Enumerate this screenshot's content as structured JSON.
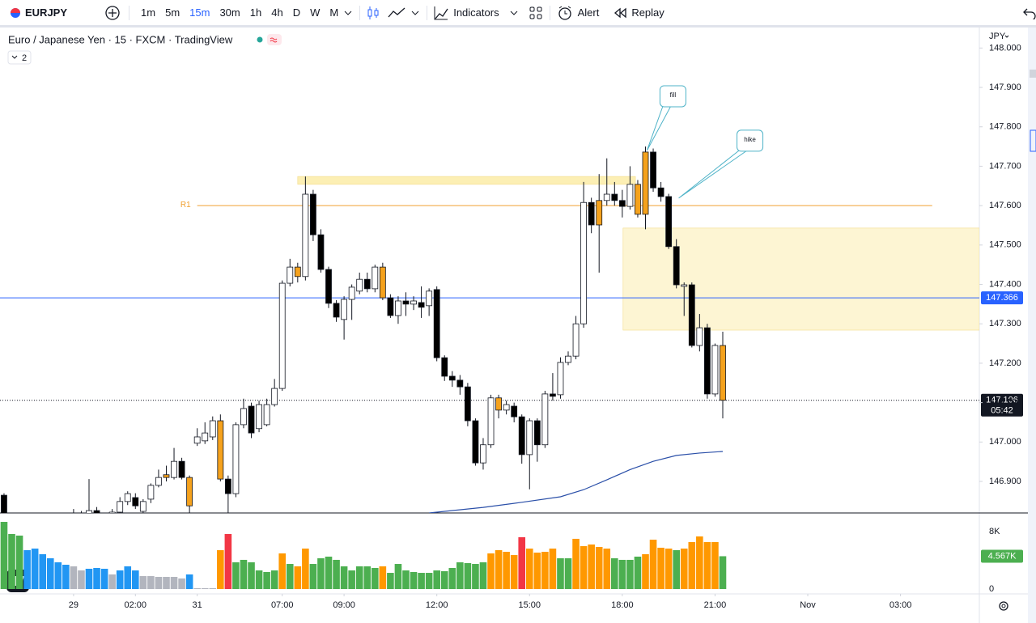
{
  "toolbar": {
    "symbol": "EURJPY",
    "intervals": [
      "1m",
      "5m",
      "15m",
      "30m",
      "1h",
      "4h",
      "D",
      "W",
      "M"
    ],
    "active_interval": "15m",
    "buttons": [
      "Indicators",
      "Alert",
      "Replay"
    ]
  },
  "legend": {
    "title": "Euro / Japanese Yen · 15 · FXCM · TradingView",
    "hidden_indicators": 2
  },
  "chart": {
    "type": "candlestick",
    "currency": "JPY",
    "xlim": [
      -0.52,
      126.2
    ],
    "ylim": [
      146.822,
      148.05
    ],
    "yticks": [
      {
        "value": 148,
        "label": "148.000"
      },
      {
        "value": 147.9,
        "label": "147.900"
      },
      {
        "value": 147.8,
        "label": "147.800"
      },
      {
        "value": 147.7,
        "label": "147.700"
      },
      {
        "value": 147.6,
        "label": "147.600"
      },
      {
        "value": 147.5,
        "label": "147.500"
      },
      {
        "value": 147.4,
        "label": "147.400"
      },
      {
        "value": 147.3,
        "label": "147.300"
      },
      {
        "value": 147.2,
        "label": "147.200"
      },
      {
        "value": 147.1,
        "label": "147.100"
      },
      {
        "value": 147,
        "label": "147.000"
      },
      {
        "value": 146.9,
        "label": "146.900"
      }
    ],
    "xticks": [
      {
        "value": 9,
        "label": "29"
      },
      {
        "value": 17,
        "label": "02:00"
      },
      {
        "value": 25,
        "label": "31"
      },
      {
        "value": 36,
        "label": "07:00"
      },
      {
        "value": 44,
        "label": "09:00"
      },
      {
        "value": 56,
        "label": "12:00"
      },
      {
        "value": 68,
        "label": "15:00"
      },
      {
        "value": 80,
        "label": "18:00"
      },
      {
        "value": 92,
        "label": "21:00"
      },
      {
        "value": 104,
        "label": "Nov"
      },
      {
        "value": 116,
        "label": "03:00"
      }
    ],
    "candles": [
      [
        146.865,
        146.87,
        146.8,
        146.81
      ],
      [
        146.79,
        146.805,
        146.77,
        146.78
      ],
      [
        146.78,
        146.8,
        146.76,
        146.795
      ],
      [
        146.795,
        146.81,
        146.78,
        146.785
      ],
      [
        146.785,
        146.8,
        146.77,
        146.79
      ],
      [
        146.79,
        146.812,
        146.78,
        146.8
      ],
      [
        146.8,
        146.815,
        146.785,
        146.79
      ],
      [
        146.79,
        146.805,
        146.775,
        146.8
      ],
      [
        146.8,
        146.818,
        146.79,
        146.81
      ],
      [
        146.81,
        146.83,
        146.795,
        146.805
      ],
      [
        146.805,
        146.825,
        146.79,
        146.815
      ],
      [
        146.815,
        146.906,
        146.8,
        146.826
      ],
      [
        146.826,
        146.835,
        146.8,
        146.81
      ],
      [
        146.81,
        146.82,
        146.79,
        146.815
      ],
      [
        146.815,
        146.83,
        146.8,
        146.822
      ],
      [
        146.822,
        146.86,
        146.815,
        146.849
      ],
      [
        146.849,
        146.875,
        146.84,
        146.869
      ],
      [
        146.859,
        146.87,
        146.83,
        146.838
      ],
      [
        146.824,
        146.855,
        146.815,
        146.849
      ],
      [
        146.855,
        146.895,
        146.845,
        146.89
      ],
      [
        146.89,
        146.93,
        146.885,
        146.91
      ],
      [
        146.917,
        146.94,
        146.9,
        146.91
      ],
      [
        146.91,
        146.985,
        146.905,
        146.951
      ],
      [
        146.951,
        146.96,
        146.905,
        146.91
      ],
      [
        146.91,
        146.915,
        146.815,
        146.838
      ],
      [
        146.997,
        147.035,
        146.99,
        147.013
      ],
      [
        147.003,
        147.05,
        146.995,
        147.023
      ],
      [
        147.013,
        147.065,
        147.005,
        147.054
      ],
      [
        147.054,
        147.07,
        146.9,
        146.906
      ],
      [
        146.906,
        146.915,
        146.82,
        146.869
      ],
      [
        146.869,
        147.05,
        146.86,
        147.044
      ],
      [
        147.044,
        147.11,
        147.035,
        147.085
      ],
      [
        147.091,
        147.1,
        147.01,
        147.023
      ],
      [
        147.034,
        147.105,
        147.025,
        147.095
      ],
      [
        147.044,
        147.11,
        147.04,
        147.095
      ],
      [
        147.095,
        147.16,
        147.09,
        147.136
      ],
      [
        147.136,
        147.41,
        147.13,
        147.403
      ],
      [
        147.403,
        147.465,
        147.395,
        147.444
      ],
      [
        147.444,
        147.455,
        147.405,
        147.42
      ],
      [
        147.42,
        147.674,
        147.41,
        147.629
      ],
      [
        147.629,
        147.64,
        147.51,
        147.526
      ],
      [
        147.526,
        147.54,
        147.43,
        147.438
      ],
      [
        147.438,
        147.445,
        147.34,
        147.352
      ],
      [
        147.352,
        147.36,
        147.305,
        147.317
      ],
      [
        147.311,
        147.37,
        147.26,
        147.362
      ],
      [
        147.362,
        147.4,
        147.31,
        147.393
      ],
      [
        147.383,
        147.43,
        147.375,
        147.413
      ],
      [
        147.413,
        147.43,
        147.38,
        147.389
      ],
      [
        147.389,
        147.45,
        147.38,
        147.444
      ],
      [
        147.444,
        147.455,
        147.36,
        147.366
      ],
      [
        147.366,
        147.375,
        147.315,
        147.321
      ],
      [
        147.321,
        147.37,
        147.3,
        147.358
      ],
      [
        147.358,
        147.38,
        147.32,
        147.35
      ],
      [
        147.35,
        147.37,
        147.335,
        147.358
      ],
      [
        147.354,
        147.395,
        147.315,
        147.342
      ],
      [
        147.346,
        147.39,
        147.32,
        147.383
      ],
      [
        147.387,
        147.395,
        147.205,
        147.214
      ],
      [
        147.214,
        147.22,
        147.155,
        147.167
      ],
      [
        147.167,
        147.18,
        147.14,
        147.157
      ],
      [
        147.157,
        147.17,
        147.12,
        147.14
      ],
      [
        147.14,
        147.15,
        147.04,
        147.054
      ],
      [
        147.054,
        147.06,
        146.94,
        146.947
      ],
      [
        146.947,
        147.01,
        146.93,
        146.993
      ],
      [
        146.993,
        147.12,
        146.985,
        147.112
      ],
      [
        147.112,
        147.12,
        147.06,
        147.081
      ],
      [
        147.081,
        147.105,
        147.07,
        147.095
      ],
      [
        147.091,
        147.1,
        147.05,
        147.064
      ],
      [
        147.064,
        147.07,
        146.945,
        146.968
      ],
      [
        146.968,
        147.06,
        146.88,
        147.054
      ],
      [
        147.054,
        147.06,
        146.95,
        146.993
      ],
      [
        146.993,
        147.13,
        146.985,
        147.122
      ],
      [
        147.122,
        147.175,
        147.105,
        147.116
      ],
      [
        147.12,
        147.215,
        147.11,
        147.202
      ],
      [
        147.202,
        147.23,
        147.195,
        147.218
      ],
      [
        147.218,
        147.32,
        147.21,
        147.3
      ],
      [
        147.3,
        147.66,
        147.29,
        147.608
      ],
      [
        147.608,
        147.62,
        147.53,
        147.551
      ],
      [
        147.551,
        147.68,
        147.43,
        147.613
      ],
      [
        147.613,
        147.72,
        147.6,
        147.629
      ],
      [
        147.629,
        147.66,
        147.6,
        147.613
      ],
      [
        147.613,
        147.64,
        147.57,
        147.598
      ],
      [
        147.598,
        147.7,
        147.59,
        147.654
      ],
      [
        147.654,
        147.665,
        147.57,
        147.578
      ],
      [
        147.578,
        147.75,
        147.54,
        147.736
      ],
      [
        147.736,
        147.745,
        147.635,
        147.645
      ],
      [
        147.645,
        147.66,
        147.61,
        147.623
      ],
      [
        147.623,
        147.63,
        147.49,
        147.496
      ],
      [
        147.496,
        147.515,
        147.39,
        147.399
      ],
      [
        147.395,
        147.405,
        147.32,
        147.399
      ],
      [
        147.399,
        147.405,
        147.24,
        147.245
      ],
      [
        147.245,
        147.325,
        147.23,
        147.29
      ],
      [
        147.29,
        147.3,
        147.11,
        147.122
      ],
      [
        147.122,
        147.25,
        147.115,
        147.245
      ],
      [
        147.245,
        147.28,
        147.06,
        147.106
      ]
    ],
    "candle_colors": [
      "#000",
      "#000",
      "#fff",
      "#000",
      "#fff",
      "#fff",
      "#000",
      "#fff",
      "#fff",
      "#000",
      "#fff",
      "#fff",
      "#000",
      "#fff",
      "#fff",
      "#fff",
      "#fff",
      "#000",
      "#fff",
      "#fff",
      "#fff",
      "#f5a21d",
      "#fff",
      "#000",
      "#f5a21d",
      "#fff",
      "#fff",
      "#fff",
      "#f5a21d",
      "#000",
      "#fff",
      "#fff",
      "#000",
      "#fff",
      "#fff",
      "#fff",
      "#fff",
      "#fff",
      "#f5a21d",
      "#fff",
      "#000",
      "#000",
      "#000",
      "#000",
      "#fff",
      "#fff",
      "#fff",
      "#000",
      "#fff",
      "#f5a21d",
      "#000",
      "#fff",
      "#000",
      "#fff",
      "#000",
      "#fff",
      "#000",
      "#000",
      "#000",
      "#000",
      "#000",
      "#000",
      "#fff",
      "#fff",
      "#f5a21d",
      "#fff",
      "#000",
      "#000",
      "#fff",
      "#000",
      "#fff",
      "#000",
      "#fff",
      "#fff",
      "#fff",
      "#fff",
      "#000",
      "#f5a21d",
      "#fff",
      "#000",
      "#000",
      "#fff",
      "#f5a21d",
      "#f5a21d",
      "#000",
      "#000",
      "#000",
      "#000",
      "#fff",
      "#000",
      "#fff",
      "#000",
      "#fff",
      "#f5a21d"
    ],
    "ma": {
      "color": "#2a4fa8",
      "x": [
        55,
        62,
        67,
        72,
        75,
        78,
        81,
        84,
        87,
        90,
        93
      ],
      "values": [
        146.82,
        146.834,
        146.847,
        146.861,
        146.879,
        146.904,
        146.93,
        146.951,
        146.966,
        146.972,
        146.976
      ]
    },
    "r1": {
      "label": "R1",
      "value": 147.6,
      "x": [
        25,
        120.1
      ],
      "color": "#f0a030"
    },
    "zones": [
      {
        "x": [
          38,
          81.7
        ],
        "y": [
          147.654,
          147.674
        ],
        "fill": "#fcefb4"
      },
      {
        "x": [
          80.1,
          126.2
        ],
        "y": [
          147.284,
          147.543
        ],
        "fill": "#fdf5d3"
      }
    ],
    "price_line": {
      "value": 147.366,
      "color": "#2962ff"
    },
    "current": {
      "price": 147.106,
      "countdown": "05:42"
    },
    "callouts": [
      {
        "text": "fill",
        "anchor": [
          83.2,
          147.74
        ]
      },
      {
        "text": "hike",
        "anchor": [
          87.3,
          147.619
        ]
      }
    ],
    "volume": {
      "ylim": [
        0,
        9915
      ],
      "yticks": [
        {
          "value": 8000,
          "label": "8K"
        },
        0
      ],
      "last_label": "4.567K",
      "values": [
        9350,
        7660,
        7440,
        5410,
        5630,
        4850,
        4280,
        3720,
        3380,
        3160,
        2590,
        2820,
        2930,
        2820,
        2030,
        2590,
        3160,
        2590,
        1800,
        1800,
        1690,
        1690,
        1690,
        1470,
        2030,
        110,
        110,
        110,
        5410,
        7660,
        3720,
        4060,
        3720,
        2590,
        2370,
        2590,
        4960,
        3490,
        3160,
        5630,
        3490,
        4280,
        4510,
        4060,
        3160,
        2590,
        3160,
        3160,
        2930,
        3160,
        2250,
        3490,
        2590,
        2370,
        2250,
        2250,
        2590,
        2480,
        2930,
        3720,
        3610,
        3490,
        3720,
        4960,
        5410,
        5180,
        4730,
        7210,
        5630,
        5070,
        5180,
        5630,
        4280,
        4280,
        6990,
        5970,
        6200,
        5860,
        5630,
        4280,
        4060,
        4060,
        4510,
        4850,
        6870,
        5750,
        5630,
        5410,
        5630,
        6540,
        7320,
        6540,
        6540,
        4567
      ],
      "colors": [
        "#4caf50",
        "#4caf50",
        "#4caf50",
        "#2196f3",
        "#2196f3",
        "#2196f3",
        "#2196f3",
        "#2196f3",
        "#2196f3",
        "#b2b5be",
        "#b2b5be",
        "#2196f3",
        "#2196f3",
        "#2196f3",
        "#b2b5be",
        "#2196f3",
        "#2196f3",
        "#2196f3",
        "#b2b5be",
        "#b2b5be",
        "#b2b5be",
        "#b2b5be",
        "#b2b5be",
        "#b2b5be",
        "#2196f3",
        "#b2b5be",
        "#b2b5be",
        "#b2b5be",
        "#ff9800",
        "#f23645",
        "#4caf50",
        "#4caf50",
        "#4caf50",
        "#4caf50",
        "#4caf50",
        "#4caf50",
        "#ff9800",
        "#4caf50",
        "#ff9800",
        "#ff9800",
        "#4caf50",
        "#4caf50",
        "#4caf50",
        "#4caf50",
        "#4caf50",
        "#4caf50",
        "#4caf50",
        "#4caf50",
        "#4caf50",
        "#ff9800",
        "#4caf50",
        "#4caf50",
        "#4caf50",
        "#4caf50",
        "#4caf50",
        "#4caf50",
        "#4caf50",
        "#4caf50",
        "#4caf50",
        "#4caf50",
        "#4caf50",
        "#4caf50",
        "#4caf50",
        "#ff9800",
        "#ff9800",
        "#ff9800",
        "#ff9800",
        "#f23645",
        "#ff9800",
        "#ff9800",
        "#ff9800",
        "#ff9800",
        "#4caf50",
        "#4caf50",
        "#ff9800",
        "#ff9800",
        "#ff9800",
        "#ff9800",
        "#ff9800",
        "#4caf50",
        "#4caf50",
        "#4caf50",
        "#4caf50",
        "#ff9800",
        "#ff9800",
        "#ff9800",
        "#ff9800",
        "#4caf50",
        "#ff9800",
        "#ff9800",
        "#ff9800",
        "#ff9800",
        "#ff9800",
        "#4caf50"
      ]
    }
  }
}
